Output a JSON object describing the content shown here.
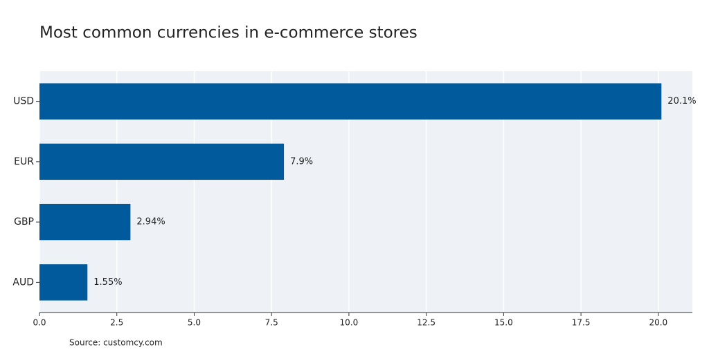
{
  "chart_data": {
    "type": "bar",
    "orientation": "horizontal",
    "title": "Most common currencies in e-commerce stores",
    "source": "Source: customcy.com",
    "categories": [
      "USD",
      "EUR",
      "GBP",
      "AUD"
    ],
    "values": [
      20.1,
      7.9,
      2.94,
      1.55
    ],
    "value_labels": [
      "20.1%",
      "7.9%",
      "2.94%",
      "1.55%"
    ],
    "color": "#005a9c",
    "xlim": [
      0,
      21.1
    ],
    "xticks": [
      {
        "value": 0,
        "label": "0.0"
      },
      2.5,
      {
        "value": 5,
        "label": "5.0"
      },
      7.5,
      {
        "value": 10,
        "label": "10.0"
      },
      12.5,
      {
        "value": 15,
        "label": "15.0"
      },
      17.5,
      {
        "value": 20,
        "label": "20.0"
      }
    ],
    "grid": true
  }
}
